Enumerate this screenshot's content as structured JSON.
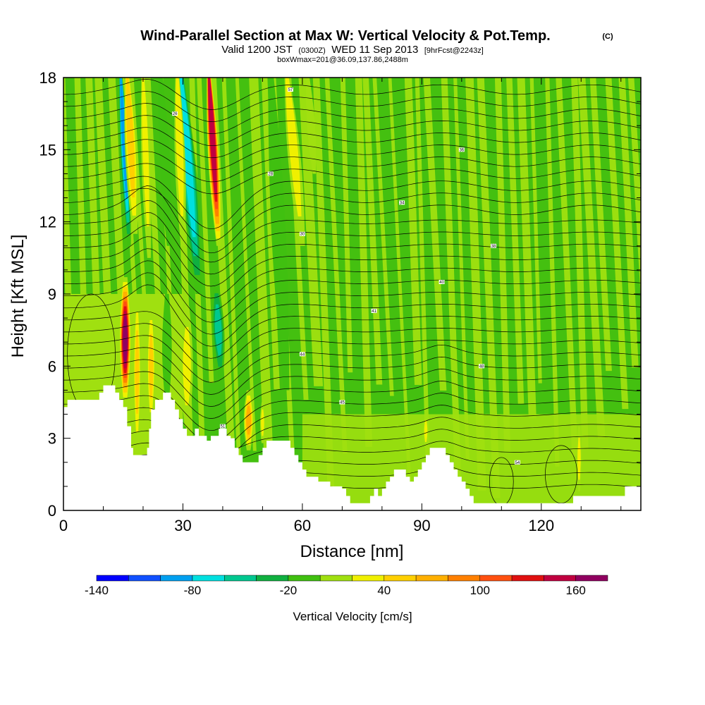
{
  "chart_data": {
    "type": "heatmap",
    "title": "Wind-Parallel Section at Max W: Vertical Velocity & Pot.Temp.",
    "title_mark": "(C)",
    "subtitle": {
      "prefix": "Valid 1200 JST",
      "utc": "(0300Z)",
      "date": "WED 11 Sep 2013",
      "forecast": "[9hrFcst@2243z]"
    },
    "subtitle2": "boxWmax=201@36.09,137.86,2488m",
    "xlabel": "Distance [nm]",
    "ylabel": "Height [Kft MSL]",
    "xlim": [
      0,
      145
    ],
    "ylim": [
      0,
      18
    ],
    "xticks": [
      0,
      30,
      60,
      90,
      120
    ],
    "xticks_labels": [
      "0",
      "30",
      "60",
      "90",
      "120"
    ],
    "yticks": [
      0,
      3,
      6,
      9,
      12,
      15,
      18
    ],
    "yticks_labels": [
      "0",
      "3",
      "6",
      "9",
      "12",
      "15",
      "18"
    ],
    "colorbar": {
      "title": "Vertical Velocity [cm/s]",
      "bounds": [
        -140,
        180
      ],
      "step": 20,
      "tick_values": [
        -140,
        -80,
        -20,
        40,
        100,
        160
      ],
      "tick_labels": [
        "-140",
        "-80",
        "-20",
        "40",
        "100",
        "160"
      ],
      "colors": [
        "#0000ff",
        "#1050ff",
        "#00a0f0",
        "#00e0e0",
        "#00c890",
        "#10b040",
        "#40c010",
        "#a0e010",
        "#f0f000",
        "#ffd000",
        "#ffb000",
        "#ff8000",
        "#ff5010",
        "#e01010",
        "#c00040",
        "#900060"
      ]
    },
    "terrain": [
      [
        0,
        4.3
      ],
      [
        1,
        4.6
      ],
      [
        8,
        4.6
      ],
      [
        9,
        4.9
      ],
      [
        10,
        5.2
      ],
      [
        12,
        5.2
      ],
      [
        13,
        4.9
      ],
      [
        14,
        4.6
      ],
      [
        15,
        4.3
      ],
      [
        16,
        3.5
      ],
      [
        17,
        2.6
      ],
      [
        17.5,
        2.3
      ],
      [
        20,
        2.3
      ],
      [
        21,
        2.6
      ],
      [
        21.5,
        3.4
      ],
      [
        22,
        4.2
      ],
      [
        23,
        4.6
      ],
      [
        24,
        4.6
      ],
      [
        25,
        4.9
      ],
      [
        26,
        4.9
      ],
      [
        27,
        4.6
      ],
      [
        28,
        4.2
      ],
      [
        29,
        3.8
      ],
      [
        30,
        3.4
      ],
      [
        31,
        3.1
      ],
      [
        32,
        3.1
      ],
      [
        33,
        3.4
      ],
      [
        34,
        3.1
      ],
      [
        35,
        3.1
      ],
      [
        36,
        2.9
      ],
      [
        37,
        3.1
      ],
      [
        38,
        3.1
      ],
      [
        39,
        3.4
      ],
      [
        40,
        3.4
      ],
      [
        41,
        3.1
      ],
      [
        42,
        3.0
      ],
      [
        43,
        2.6
      ],
      [
        44,
        2.3
      ],
      [
        45,
        2.0
      ],
      [
        48,
        2.0
      ],
      [
        49,
        2.3
      ],
      [
        50,
        2.6
      ],
      [
        51,
        2.9
      ],
      [
        56,
        2.9
      ],
      [
        57,
        2.6
      ],
      [
        58,
        2.3
      ],
      [
        59,
        2.0
      ],
      [
        60,
        1.7
      ],
      [
        61,
        1.4
      ],
      [
        63,
        1.4
      ],
      [
        64,
        1.2
      ],
      [
        66,
        1.2
      ],
      [
        67,
        1.0
      ],
      [
        69,
        1.0
      ],
      [
        70,
        0.9
      ],
      [
        71,
        0.6
      ],
      [
        72,
        0.3
      ],
      [
        76,
        0.3
      ],
      [
        77,
        0.6
      ],
      [
        78,
        0.9
      ],
      [
        79,
        0.6
      ],
      [
        80,
        0.9
      ],
      [
        81,
        1.2
      ],
      [
        82,
        1.4
      ],
      [
        83,
        1.7
      ],
      [
        85,
        1.7
      ],
      [
        86,
        1.4
      ],
      [
        87,
        1.2
      ],
      [
        88,
        1.4
      ],
      [
        89,
        1.7
      ],
      [
        90,
        2.0
      ],
      [
        91,
        2.3
      ],
      [
        92,
        2.6
      ],
      [
        95,
        2.6
      ],
      [
        96,
        2.3
      ],
      [
        97,
        2.0
      ],
      [
        98,
        1.7
      ],
      [
        99,
        1.4
      ],
      [
        100,
        1.2
      ],
      [
        101,
        0.9
      ],
      [
        102,
        0.6
      ],
      [
        103,
        0.3
      ],
      [
        127,
        0.3
      ],
      [
        128,
        0.6
      ],
      [
        140,
        0.6
      ],
      [
        141,
        1.0
      ],
      [
        145,
        1.0
      ]
    ],
    "updrafts": [
      {
        "x": 15.5,
        "y0": 4.5,
        "y1": 9.7,
        "hw": 1.4,
        "tilt": 0.0,
        "w": 190
      },
      {
        "x": 18.5,
        "y0": 2.5,
        "y1": 9.0,
        "hw": 0.9,
        "tilt": 0.0,
        "w": 60
      },
      {
        "x": 22.0,
        "y0": 3.5,
        "y1": 8.5,
        "hw": 1.0,
        "tilt": 0.0,
        "w": 70
      },
      {
        "x": 18.0,
        "y0": 11.5,
        "y1": 18.0,
        "hw": 1.5,
        "tilt": -0.3,
        "w": 60
      },
      {
        "x": 21.5,
        "y0": 10.5,
        "y1": 18.0,
        "hw": 1.1,
        "tilt": -0.2,
        "w": 40
      },
      {
        "x": 31.0,
        "y0": 3.5,
        "y1": 8.5,
        "hw": 1.5,
        "tilt": 0.0,
        "w": 45
      },
      {
        "x": 30.0,
        "y0": 11.0,
        "y1": 18.0,
        "hw": 1.3,
        "tilt": -0.2,
        "w": 40
      },
      {
        "x": 39.0,
        "y0": 11.0,
        "y1": 18.0,
        "hw": 1.4,
        "tilt": -0.35,
        "w": 160
      },
      {
        "x": 46.5,
        "y0": 2.5,
        "y1": 5.0,
        "hw": 1.2,
        "tilt": 0.0,
        "w": 80
      },
      {
        "x": 60.0,
        "y0": 11.0,
        "y1": 18.0,
        "hw": 1.6,
        "tilt": -0.55,
        "w": 50
      },
      {
        "x": 50.0,
        "y0": 2.8,
        "y1": 4.5,
        "hw": 0.6,
        "tilt": 0.0,
        "w": 40
      },
      {
        "x": 91.0,
        "y0": 2.6,
        "y1": 4.0,
        "hw": 0.6,
        "tilt": 0.0,
        "w": 40
      },
      {
        "x": 129.5,
        "y0": 0.8,
        "y1": 3.5,
        "hw": 0.6,
        "tilt": 0.0,
        "w": 45
      },
      {
        "x": 63.0,
        "y0": 14.0,
        "y1": 18.0,
        "hw": 1.0,
        "tilt": -0.4,
        "w": 25
      }
    ],
    "downdrafts": [
      {
        "x": 16.5,
        "y0": 11.0,
        "y1": 18.0,
        "hw": 1.1,
        "tilt": -0.3,
        "w": -100
      },
      {
        "x": 34.0,
        "y0": 9.0,
        "y1": 18.0,
        "hw": 2.0,
        "tilt": -0.5,
        "w": -90
      },
      {
        "x": 39.5,
        "y0": 5.5,
        "y1": 9.5,
        "hw": 1.5,
        "tilt": -0.3,
        "w": -60
      },
      {
        "x": 26.0,
        "y0": 4.5,
        "y1": 9.0,
        "hw": 1.2,
        "tilt": 0.0,
        "w": -30
      },
      {
        "x": 26.5,
        "y0": 11.0,
        "y1": 18.0,
        "hw": 1.3,
        "tilt": -0.3,
        "w": -30
      },
      {
        "x": 56.0,
        "y0": 5.0,
        "y1": 18.0,
        "hw": 1.8,
        "tilt": -0.3,
        "w": -25
      }
    ],
    "theta_contours": {
      "count": 34,
      "lowest_height": 1.0,
      "spacing": 0.5
    },
    "theta_label_values": [
      "26",
      "28",
      "30",
      "34",
      "36",
      "38",
      "40",
      "41",
      "44",
      "45",
      "48",
      "51",
      "54",
      "57"
    ]
  }
}
